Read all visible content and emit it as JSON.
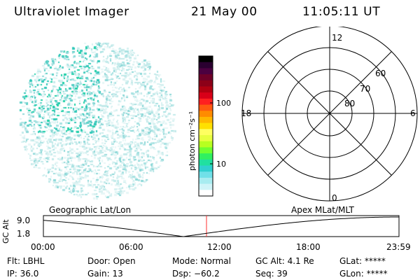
{
  "header": {
    "instrument": "Ultraviolet Imager",
    "date": "21 May 00",
    "time": "11:05:11 UT"
  },
  "colorbar": {
    "unit_label": "photon cm⁻²s⁻¹",
    "ticks": [
      "100",
      "10"
    ],
    "colors": [
      "#000000",
      "#2a0030",
      "#4b0040",
      "#6e0028",
      "#8c0018",
      "#b00010",
      "#d80018",
      "#ff2020",
      "#ff5a10",
      "#ff8c00",
      "#ffb800",
      "#ffe000",
      "#ffff60",
      "#e8ff40",
      "#b8ff20",
      "#70ff30",
      "#30f060",
      "#20e0a0",
      "#30d0d0",
      "#70e0e8",
      "#a8ecf0",
      "#d0f4f8",
      "#ffffff"
    ]
  },
  "polar": {
    "mlt_labels": {
      "top": "12",
      "left": "18",
      "right": "6",
      "bottom": "0"
    },
    "lat_labels": [
      "60",
      "70",
      "80"
    ]
  },
  "timeline": {
    "left_label": "Geographic Lat/Lon",
    "right_label": "Apex MLat/MLT",
    "axis_title": "GC Alt",
    "y_ticks": [
      "9.0",
      "1.8"
    ],
    "x_ticks": [
      "00:00",
      "06:00",
      "12:00",
      "18:00",
      "23:59"
    ],
    "marker_color": "#ff3030"
  },
  "info": {
    "flt": "Flt: LBHL",
    "ip": "IP: 36.0",
    "door": "Door: Open",
    "gain": "Gain: 13",
    "mode": "Mode: Normal",
    "dsp": "Dsp:  −60.2",
    "gcalt": "GC Alt: 4.1 Re",
    "seq": "Seq: 39",
    "glat": "GLat: *****",
    "glon": "GLon: *****"
  }
}
